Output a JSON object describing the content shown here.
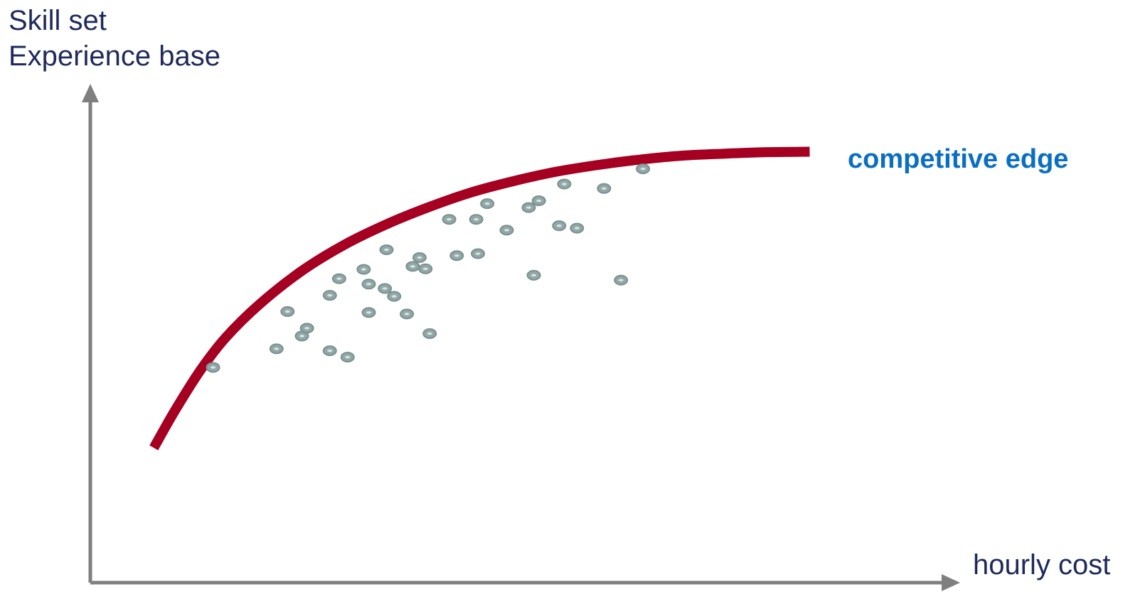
{
  "chart_data": {
    "type": "scatter",
    "ylabel_lines": [
      "Skill set",
      "Experience base"
    ],
    "xlabel": "hourly cost",
    "curve_label": "competitive edge",
    "x_range": [
      0,
      100
    ],
    "y_range": [
      0,
      100
    ],
    "grid": false,
    "colors": {
      "axis": "#7f7f7f",
      "curve": "#a50021",
      "points_fill": "#93a7a7",
      "points_stroke": "#7a9090",
      "curve_label": "#0a6fc2",
      "text": "#1f2a5c"
    },
    "curve": {
      "x": [
        7.5,
        10,
        13,
        16,
        20,
        25,
        30,
        35,
        40,
        45,
        50,
        55,
        60,
        65,
        70,
        75,
        80,
        85
      ],
      "y": [
        27.5,
        35.1,
        43.3,
        50.0,
        56.8,
        63.6,
        68.9,
        73.1,
        76.6,
        79.6,
        81.9,
        83.8,
        85.2,
        86.3,
        87.1,
        87.5,
        87.8,
        87.9
      ]
    },
    "points": [
      {
        "x": 14.5,
        "y": 43.9
      },
      {
        "x": 22.0,
        "y": 47.7
      },
      {
        "x": 23.3,
        "y": 55.3
      },
      {
        "x": 25.0,
        "y": 50.3
      },
      {
        "x": 25.6,
        "y": 51.9
      },
      {
        "x": 28.3,
        "y": 47.3
      },
      {
        "x": 28.3,
        "y": 58.6
      },
      {
        "x": 29.4,
        "y": 62.0
      },
      {
        "x": 30.4,
        "y": 46.0
      },
      {
        "x": 32.3,
        "y": 63.9
      },
      {
        "x": 32.9,
        "y": 60.9
      },
      {
        "x": 32.9,
        "y": 55.1
      },
      {
        "x": 34.8,
        "y": 60.0
      },
      {
        "x": 35.0,
        "y": 67.9
      },
      {
        "x": 35.9,
        "y": 58.4
      },
      {
        "x": 37.4,
        "y": 54.8
      },
      {
        "x": 38.1,
        "y": 64.5
      },
      {
        "x": 38.9,
        "y": 66.3
      },
      {
        "x": 39.6,
        "y": 64.0
      },
      {
        "x": 40.1,
        "y": 50.8
      },
      {
        "x": 42.4,
        "y": 74.1
      },
      {
        "x": 43.3,
        "y": 66.7
      },
      {
        "x": 45.6,
        "y": 74.1
      },
      {
        "x": 45.8,
        "y": 67.1
      },
      {
        "x": 46.9,
        "y": 77.3
      },
      {
        "x": 49.2,
        "y": 71.9
      },
      {
        "x": 51.8,
        "y": 76.5
      },
      {
        "x": 52.4,
        "y": 62.7
      },
      {
        "x": 53.0,
        "y": 77.9
      },
      {
        "x": 55.4,
        "y": 72.8
      },
      {
        "x": 56.0,
        "y": 81.3
      },
      {
        "x": 57.5,
        "y": 72.3
      },
      {
        "x": 60.7,
        "y": 80.4
      },
      {
        "x": 62.7,
        "y": 61.7
      },
      {
        "x": 65.3,
        "y": 84.4
      }
    ]
  }
}
